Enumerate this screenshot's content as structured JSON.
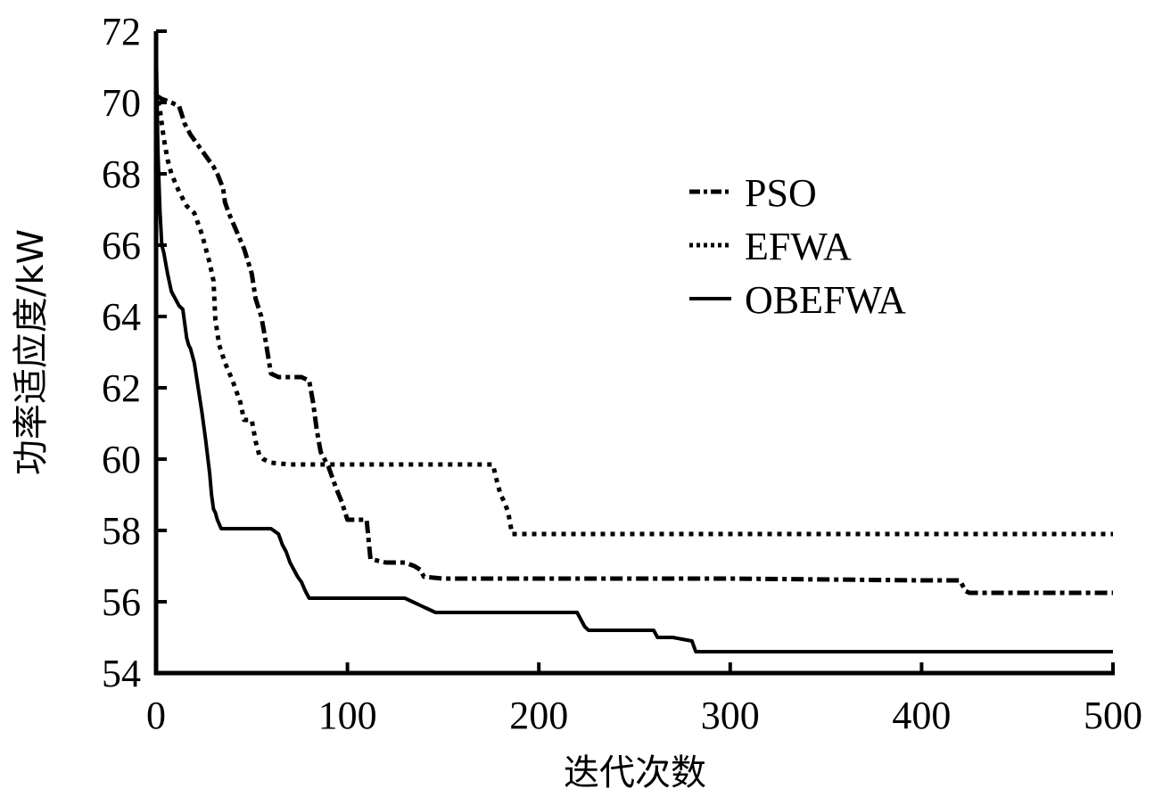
{
  "chart_data": {
    "type": "line",
    "title": "",
    "xlabel": "迭代次数",
    "ylabel": "功率适应度/kW",
    "xlim": [
      0,
      500
    ],
    "ylim": [
      54,
      72
    ],
    "xticks": [
      0,
      100,
      200,
      300,
      400,
      500
    ],
    "yticks": [
      54,
      56,
      58,
      60,
      62,
      64,
      66,
      68,
      70,
      72
    ],
    "grid": false,
    "legend_position": "upper right (inside)",
    "series": [
      {
        "name": "PSO",
        "style": "dash-dot",
        "x": [
          0,
          3,
          8,
          12,
          15,
          18,
          22,
          26,
          30,
          32,
          35,
          36,
          38,
          42,
          46,
          50,
          52,
          55,
          57,
          60,
          64,
          70,
          76,
          80,
          82,
          84,
          86,
          90,
          94,
          97,
          100,
          104,
          110,
          112,
          120,
          130,
          135,
          138,
          140,
          150,
          200,
          300,
          400,
          420,
          423,
          425,
          440,
          500
        ],
        "y": [
          70.2,
          70.1,
          70.0,
          69.9,
          69.4,
          69.1,
          68.8,
          68.5,
          68.2,
          68.0,
          67.6,
          67.2,
          66.9,
          66.4,
          65.9,
          65.2,
          64.5,
          64.0,
          63.4,
          62.4,
          62.3,
          62.3,
          62.3,
          62.2,
          61.6,
          60.8,
          60.2,
          59.8,
          59.2,
          58.8,
          58.3,
          58.3,
          58.3,
          57.2,
          57.1,
          57.1,
          57.0,
          56.9,
          56.7,
          56.65,
          56.65,
          56.65,
          56.6,
          56.6,
          56.3,
          56.25,
          56.25,
          56.25
        ]
      },
      {
        "name": "EFWA",
        "style": "dotted",
        "x": [
          0,
          2,
          4,
          6,
          8,
          12,
          16,
          20,
          24,
          28,
          30,
          31,
          33,
          36,
          40,
          44,
          46,
          50,
          52,
          54,
          56,
          60,
          70,
          80,
          100,
          150,
          176,
          178,
          180,
          182,
          184,
          186,
          200,
          300,
          400,
          500
        ],
        "y": [
          70.3,
          69.8,
          69.0,
          68.4,
          68.0,
          67.5,
          67.1,
          66.9,
          66.3,
          65.5,
          65.0,
          63.9,
          63.2,
          62.7,
          62.2,
          61.6,
          61.1,
          61.1,
          60.5,
          60.1,
          60.0,
          59.9,
          59.85,
          59.85,
          59.85,
          59.85,
          59.85,
          59.4,
          59.0,
          58.8,
          58.5,
          57.9,
          57.9,
          57.9,
          57.9,
          57.9
        ]
      },
      {
        "name": "OBEFWA",
        "style": "solid",
        "x": [
          0,
          1,
          2,
          3,
          4,
          6,
          8,
          10,
          12,
          14,
          16,
          17,
          18,
          20,
          22,
          24,
          26,
          28,
          29,
          30,
          31,
          32,
          34,
          40,
          50,
          60,
          64,
          66,
          68,
          70,
          72,
          74,
          76,
          78,
          80,
          90,
          120,
          130,
          134,
          138,
          142,
          146,
          150,
          200,
          220,
          222,
          224,
          226,
          230,
          250,
          260,
          262,
          264,
          270,
          280,
          282,
          290,
          300,
          400,
          500
        ],
        "y": [
          71.8,
          68.6,
          67.0,
          66.0,
          65.8,
          65.2,
          64.7,
          64.5,
          64.3,
          64.2,
          63.4,
          63.2,
          63.1,
          62.7,
          62.0,
          61.3,
          60.5,
          59.6,
          59.0,
          58.6,
          58.5,
          58.3,
          58.05,
          58.05,
          58.05,
          58.05,
          57.9,
          57.6,
          57.4,
          57.1,
          56.9,
          56.7,
          56.55,
          56.3,
          56.1,
          56.1,
          56.1,
          56.1,
          56.0,
          55.9,
          55.8,
          55.7,
          55.7,
          55.7,
          55.7,
          55.5,
          55.3,
          55.2,
          55.2,
          55.2,
          55.2,
          55.0,
          55.0,
          55.0,
          54.9,
          54.6,
          54.6,
          54.6,
          54.6,
          54.6
        ]
      }
    ]
  },
  "legend": {
    "items": [
      {
        "label": "PSO",
        "style": "dash-dot"
      },
      {
        "label": "EFWA",
        "style": "dotted"
      },
      {
        "label": "OBEFWA",
        "style": "solid"
      }
    ]
  },
  "colors": {
    "line": "#000000",
    "background": "#ffffff"
  }
}
